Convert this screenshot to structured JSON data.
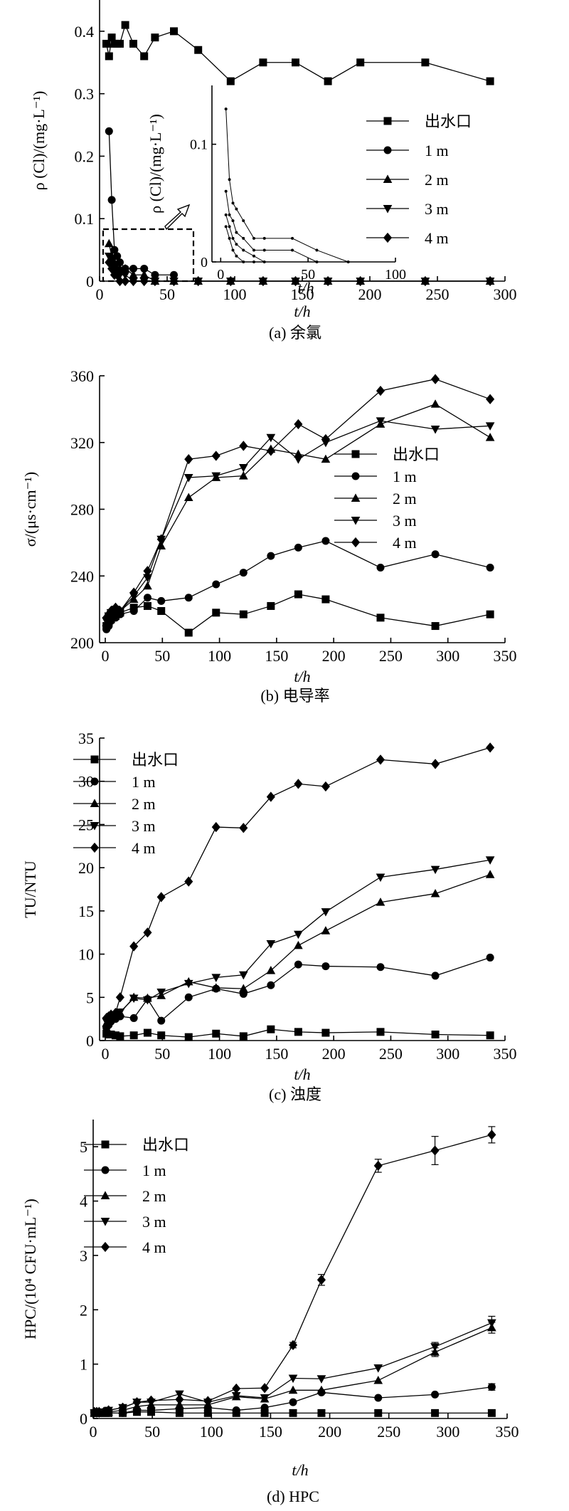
{
  "legend_labels": [
    "出水口",
    "1 m",
    "2 m",
    "3 m",
    "4 m"
  ],
  "chart_data": [
    {
      "id": "a",
      "type": "line",
      "caption": "(a) 余氯",
      "xlabel": "t/h",
      "ylabel": "ρ (Cl)/(mg·L⁻¹)",
      "xlim": [
        0,
        300
      ],
      "ylim": [
        0,
        0.45
      ],
      "xticks": [
        0,
        50,
        100,
        150,
        200,
        250,
        300
      ],
      "yticks": [
        0,
        0.1,
        0.2,
        0.3,
        0.4
      ],
      "yticklabels": [
        "0",
        "0.1",
        "0.2",
        "0.3",
        "0.4"
      ],
      "legend": "right",
      "series": [
        {
          "name": "出水口",
          "marker": "square",
          "x": [
            5,
            7,
            9,
            11,
            13,
            15,
            19,
            25,
            33,
            41,
            55,
            73,
            97,
            121,
            145,
            169,
            193,
            241,
            289
          ],
          "y": [
            0.38,
            0.36,
            0.39,
            0.38,
            0.38,
            0.38,
            0.41,
            0.38,
            0.36,
            0.39,
            0.4,
            0.37,
            0.32,
            0.35,
            0.35,
            0.32,
            0.35,
            0.35,
            0.32
          ]
        },
        {
          "name": "1 m",
          "marker": "circle",
          "x": [
            7,
            9,
            11,
            13,
            15,
            19,
            25,
            33,
            41,
            55
          ],
          "y": [
            0.24,
            0.13,
            0.05,
            0.04,
            0.03,
            0.02,
            0.02,
            0.02,
            0.01,
            0.01
          ]
        },
        {
          "name": "2 m",
          "marker": "triangle-up",
          "x": [
            7,
            9,
            11,
            13,
            15,
            19,
            25,
            33,
            41,
            55,
            73,
            97,
            121,
            145,
            169,
            193,
            241,
            289
          ],
          "y": [
            0.06,
            0.04,
            0.03,
            0.02,
            0.02,
            0.02,
            0.01,
            0.01,
            0,
            0,
            0,
            0,
            0,
            0,
            0,
            0,
            0,
            0
          ]
        },
        {
          "name": "3 m",
          "marker": "triangle-down",
          "x": [
            7,
            9,
            11,
            13,
            15,
            19,
            25,
            33,
            41,
            55,
            73,
            97,
            121,
            145,
            169,
            193,
            241,
            289
          ],
          "y": [
            0.04,
            0.03,
            0.02,
            0.015,
            0.01,
            0.01,
            0,
            0,
            0,
            0,
            0,
            0,
            0,
            0,
            0,
            0,
            0,
            0
          ]
        },
        {
          "name": "4 m",
          "marker": "diamond",
          "x": [
            7,
            9,
            11,
            13,
            15,
            19,
            25,
            33,
            41,
            55,
            73,
            97,
            121,
            145,
            169,
            193,
            241,
            289
          ],
          "y": [
            0.03,
            0.02,
            0.01,
            0.01,
            0,
            0,
            0,
            0,
            0,
            0,
            0,
            0,
            0,
            0,
            0,
            0,
            0,
            0
          ]
        }
      ],
      "inset": {
        "xlabel": "t/h",
        "ylabel": "ρ (Cl)/(mg·L⁻¹)",
        "xlim": [
          -5,
          100
        ],
        "ylim": [
          0,
          0.15
        ],
        "xticks": [
          0,
          50,
          100
        ],
        "yticks": [
          0,
          0.1
        ],
        "yticklabels": [
          "0",
          "0.1"
        ],
        "series": [
          {
            "name": "1 m",
            "x": [
              3,
              5,
              7,
              9,
              13,
              19,
              25,
              41,
              55,
              73
            ],
            "y": [
              0.13,
              0.07,
              0.05,
              0.045,
              0.035,
              0.02,
              0.02,
              0.02,
              0.01,
              0
            ]
          },
          {
            "name": "2 m",
            "x": [
              3,
              5,
              7,
              9,
              13,
              19,
              25,
              41,
              55
            ],
            "y": [
              0.06,
              0.04,
              0.035,
              0.025,
              0.02,
              0.01,
              0.01,
              0.01,
              0
            ]
          },
          {
            "name": "3 m",
            "x": [
              3,
              5,
              7,
              9,
              13,
              19,
              25
            ],
            "y": [
              0.04,
              0.03,
              0.02,
              0.015,
              0.01,
              0.005,
              0
            ]
          },
          {
            "name": "4 m",
            "x": [
              3,
              5,
              7,
              9,
              13,
              19
            ],
            "y": [
              0.03,
              0.02,
              0.01,
              0.005,
              0,
              0
            ]
          }
        ]
      }
    },
    {
      "id": "b",
      "type": "line",
      "caption": "(b) 电导率",
      "xlabel": "t/h",
      "ylabel": "σ/(μs·cm⁻¹)",
      "xlim": [
        -5,
        350
      ],
      "ylim": [
        200,
        360
      ],
      "xticks": [
        0,
        50,
        100,
        150,
        200,
        250,
        300,
        350
      ],
      "yticks": [
        200,
        240,
        280,
        320,
        360
      ],
      "yticklabels": [
        "200",
        "240",
        "280",
        "320",
        "360"
      ],
      "legend": "right",
      "series": [
        {
          "name": "出水口",
          "marker": "square",
          "x": [
            1,
            3,
            5,
            9,
            13,
            25,
            37,
            49,
            73,
            97,
            121,
            145,
            169,
            193,
            241,
            289,
            337
          ],
          "y": [
            210,
            212,
            214,
            216,
            218,
            221,
            222,
            219,
            206,
            218,
            217,
            222,
            229,
            226,
            215,
            210,
            217
          ]
        },
        {
          "name": "1 m",
          "marker": "circle",
          "x": [
            1,
            3,
            5,
            9,
            13,
            25,
            37,
            49,
            73,
            97,
            121,
            145,
            169,
            193,
            241,
            289,
            337
          ],
          "y": [
            208,
            210,
            213,
            215,
            217,
            219,
            227,
            225,
            227,
            235,
            242,
            252,
            257,
            261,
            245,
            253,
            245
          ]
        },
        {
          "name": "2 m",
          "marker": "triangle-up",
          "x": [
            1,
            3,
            5,
            9,
            13,
            25,
            37,
            49,
            73,
            97,
            121,
            145,
            169,
            193,
            241,
            289,
            337
          ],
          "y": [
            212,
            215,
            217,
            220,
            219,
            226,
            234,
            258,
            287,
            299,
            300,
            316,
            313,
            310,
            331,
            343,
            323
          ]
        },
        {
          "name": "3 m",
          "marker": "triangle-down",
          "x": [
            1,
            3,
            5,
            9,
            13,
            25,
            37,
            49,
            73,
            97,
            121,
            145,
            169,
            193,
            241,
            289,
            337
          ],
          "y": [
            213,
            216,
            218,
            220,
            219,
            228,
            239,
            262,
            299,
            300,
            305,
            323,
            310,
            320,
            333,
            328,
            330
          ]
        },
        {
          "name": "4 m",
          "marker": "diamond",
          "x": [
            1,
            3,
            5,
            9,
            13,
            25,
            37,
            49,
            73,
            97,
            121,
            145,
            169,
            193,
            241,
            289,
            337
          ],
          "y": [
            215,
            217,
            219,
            221,
            219,
            230,
            243,
            262,
            310,
            312,
            318,
            315,
            331,
            322,
            351,
            358,
            346
          ]
        }
      ]
    },
    {
      "id": "c",
      "type": "line",
      "caption": "(c) 浊度",
      "xlabel": "t/h",
      "ylabel": "TU/NTU",
      "xlim": [
        -5,
        350
      ],
      "ylim": [
        0,
        35
      ],
      "xticks": [
        0,
        50,
        100,
        150,
        200,
        250,
        300,
        350
      ],
      "yticks": [
        0,
        5,
        10,
        15,
        20,
        25,
        30,
        35
      ],
      "yticklabels": [
        "0",
        "5",
        "10",
        "15",
        "20",
        "25",
        "30",
        "35"
      ],
      "legend": "top-left",
      "series": [
        {
          "name": "出水口",
          "marker": "square",
          "x": [
            1,
            3,
            5,
            9,
            13,
            25,
            37,
            49,
            73,
            97,
            121,
            145,
            169,
            193,
            241,
            289,
            337
          ],
          "y": [
            0.8,
            0.7,
            0.7,
            0.6,
            0.5,
            0.6,
            0.9,
            0.6,
            0.4,
            0.8,
            0.5,
            1.3,
            1.0,
            0.9,
            1.0,
            0.7,
            0.6
          ]
        },
        {
          "name": "1 m",
          "marker": "circle",
          "x": [
            1,
            3,
            5,
            9,
            13,
            25,
            37,
            49,
            73,
            97,
            121,
            145,
            169,
            193,
            241,
            289,
            337
          ],
          "y": [
            1.5,
            1.8,
            2.2,
            2.5,
            2.8,
            2.6,
            4.8,
            2.3,
            5.0,
            6.0,
            5.4,
            6.4,
            8.8,
            8.6,
            8.5,
            7.5,
            9.6
          ]
        },
        {
          "name": "2 m",
          "marker": "triangle-up",
          "x": [
            1,
            3,
            5,
            9,
            13,
            25,
            37,
            49,
            73,
            97,
            121,
            145,
            169,
            193,
            241,
            289,
            337
          ],
          "y": [
            2.0,
            2.3,
            2.6,
            2.9,
            3.2,
            5.0,
            4.9,
            5.2,
            6.8,
            6.1,
            6.0,
            8.1,
            11.0,
            12.7,
            16.0,
            17.0,
            19.2
          ]
        },
        {
          "name": "3 m",
          "marker": "triangle-down",
          "x": [
            1,
            3,
            5,
            9,
            13,
            25,
            37,
            49,
            73,
            97,
            121,
            145,
            169,
            193,
            241,
            289,
            337
          ],
          "y": [
            2.2,
            2.5,
            2.8,
            3.0,
            3.3,
            4.9,
            4.7,
            5.6,
            6.6,
            7.3,
            7.6,
            11.2,
            12.3,
            14.9,
            18.9,
            19.8,
            20.9
          ]
        },
        {
          "name": "4 m",
          "marker": "diamond",
          "x": [
            1,
            3,
            5,
            9,
            13,
            25,
            37,
            49,
            73,
            97,
            121,
            145,
            169,
            193,
            241,
            289,
            337
          ],
          "y": [
            2.6,
            2.8,
            3.0,
            3.2,
            5.0,
            10.9,
            12.5,
            16.6,
            18.4,
            24.7,
            24.6,
            28.2,
            29.7,
            29.4,
            32.5,
            32.0,
            33.9
          ]
        }
      ]
    },
    {
      "id": "d",
      "type": "line",
      "caption": "(d) HPC",
      "xlabel": "t/h",
      "ylabel": "HPC/(10⁴ CFU·mL⁻¹)",
      "xlim": [
        0,
        350
      ],
      "ylim": [
        0,
        5.5
      ],
      "xticks": [
        0,
        50,
        100,
        150,
        200,
        250,
        300,
        350
      ],
      "yticks": [
        0,
        1,
        2,
        3,
        4,
        5
      ],
      "yticklabels": [
        "0",
        "1",
        "2",
        "3",
        "4",
        "5"
      ],
      "legend": "top-left",
      "series": [
        {
          "name": "出水口",
          "marker": "square",
          "x": [
            1,
            3,
            5,
            9,
            13,
            25,
            37,
            49,
            73,
            97,
            121,
            145,
            169,
            193,
            241,
            289,
            337
          ],
          "y": [
            0.1,
            0.1,
            0.1,
            0.1,
            0.1,
            0.1,
            0.12,
            0.12,
            0.1,
            0.1,
            0.1,
            0.1,
            0.1,
            0.1,
            0.1,
            0.1,
            0.1
          ]
        },
        {
          "name": "1 m",
          "marker": "circle",
          "x": [
            1,
            3,
            5,
            9,
            13,
            25,
            37,
            49,
            73,
            97,
            121,
            145,
            169,
            193,
            241,
            289,
            337
          ],
          "y": [
            0.1,
            0.1,
            0.1,
            0.1,
            0.1,
            0.1,
            0.15,
            0.15,
            0.18,
            0.2,
            0.15,
            0.2,
            0.3,
            0.48,
            0.38,
            0.44,
            0.58
          ],
          "err": [
            0,
            0,
            0,
            0,
            0,
            0,
            0,
            0,
            0,
            0,
            0,
            0,
            0,
            0,
            0,
            0,
            0.06
          ]
        },
        {
          "name": "2 m",
          "marker": "triangle-up",
          "x": [
            1,
            3,
            5,
            9,
            13,
            25,
            37,
            49,
            73,
            97,
            121,
            145,
            169,
            193,
            241,
            289,
            337
          ],
          "y": [
            0.1,
            0.1,
            0.1,
            0.1,
            0.12,
            0.15,
            0.22,
            0.25,
            0.25,
            0.25,
            0.4,
            0.36,
            0.52,
            0.52,
            0.7,
            1.22,
            1.67
          ],
          "err": [
            0,
            0,
            0,
            0,
            0,
            0,
            0,
            0,
            0,
            0,
            0,
            0,
            0,
            0,
            0,
            0.08,
            0.1
          ]
        },
        {
          "name": "3 m",
          "marker": "triangle-down",
          "x": [
            1,
            3,
            5,
            9,
            13,
            25,
            37,
            49,
            73,
            97,
            121,
            145,
            169,
            193,
            241,
            289,
            337
          ],
          "y": [
            0.1,
            0.1,
            0.1,
            0.12,
            0.15,
            0.2,
            0.3,
            0.3,
            0.45,
            0.3,
            0.42,
            0.38,
            0.74,
            0.73,
            0.93,
            1.32,
            1.76
          ],
          "err": [
            0,
            0,
            0,
            0,
            0,
            0,
            0,
            0,
            0,
            0,
            0,
            0,
            0,
            0,
            0,
            0.08,
            0.12
          ]
        },
        {
          "name": "4 m",
          "marker": "diamond",
          "x": [
            1,
            3,
            5,
            9,
            13,
            25,
            37,
            49,
            73,
            97,
            121,
            145,
            169,
            193,
            241,
            289,
            337
          ],
          "y": [
            0.12,
            0.12,
            0.12,
            0.12,
            0.15,
            0.2,
            0.3,
            0.33,
            0.35,
            0.32,
            0.55,
            0.56,
            1.35,
            2.55,
            4.65,
            4.93,
            5.22
          ],
          "err": [
            0,
            0,
            0,
            0,
            0,
            0,
            0,
            0,
            0,
            0,
            0,
            0,
            0.05,
            0.1,
            0.12,
            0.26,
            0.15
          ]
        }
      ]
    }
  ]
}
